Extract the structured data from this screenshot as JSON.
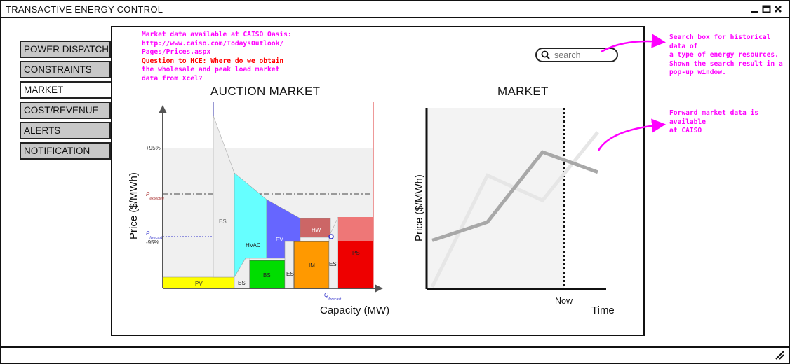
{
  "window": {
    "title": "TRANSACTIVE ENERGY CONTROL"
  },
  "nav": {
    "items": [
      {
        "label": "POWER DISPATCH",
        "active": false
      },
      {
        "label": "CONSTRAINTS",
        "active": false
      },
      {
        "label": "MARKET",
        "active": true
      },
      {
        "label": "COST/REVENUE",
        "active": false
      },
      {
        "label": "ALERTS",
        "active": false
      },
      {
        "label": "NOTIFICATION",
        "active": false
      }
    ]
  },
  "notes": {
    "market_data": [
      "Market data available at CAISO Oasis:",
      "http://www.caiso.com/TodaysOutlook/",
      "Pages/Prices.aspx"
    ],
    "question": [
      "Question to HCE: Where do we obtain",
      "the wholesale and peak load market",
      "data from Xcel?"
    ],
    "search_note": [
      "Search box for historical data of",
      "a type of energy resources.",
      "Shown the search result in a",
      "pop-up window."
    ],
    "forward_note": [
      "Forward market data is available",
      "at CAISO"
    ]
  },
  "search": {
    "placeholder": "search",
    "icon": "search-icon"
  },
  "colors": {
    "annotation": "#ff00ff",
    "question": "#ff0000"
  },
  "chart_data": [
    {
      "type": "area",
      "title": "AUCTION MARKET",
      "xlabel": "Capacity (MW)",
      "ylabel": "Price ($/MWh)",
      "y_markers": [
        "+95%",
        "-95%"
      ],
      "price_lines": [
        {
          "label": "P",
          "sub": "expected"
        },
        {
          "label": "P",
          "sub": "forecast"
        }
      ],
      "x_markers": [
        {
          "label": "Q",
          "sub": "forecast"
        }
      ],
      "blocks": [
        {
          "label": "PV",
          "color": "#ffff00"
        },
        {
          "label": "ES",
          "color": "#eeeeee"
        },
        {
          "label": "HVAC",
          "color": "#66ffff"
        },
        {
          "label": "EV",
          "color": "#6666ff"
        },
        {
          "label": "BS",
          "color": "#00dd00"
        },
        {
          "label": "ES",
          "color": "#eeeeee"
        },
        {
          "label": "HW",
          "color": "#cc6666"
        },
        {
          "label": "IM",
          "color": "#ff9900"
        },
        {
          "label": "ES",
          "color": "#eeeeee"
        },
        {
          "label": "PS",
          "color": "#ee0000"
        }
      ]
    },
    {
      "type": "line",
      "title": "MARKET",
      "xlabel": "Time",
      "ylabel": "Price ($/MWh)",
      "marker": "Now",
      "series": [
        {
          "values": [
            0.28,
            0.39,
            0.81,
            0.69
          ]
        },
        {
          "values": [
            0.0,
            0.67,
            0.52,
            0.93
          ]
        }
      ]
    }
  ]
}
